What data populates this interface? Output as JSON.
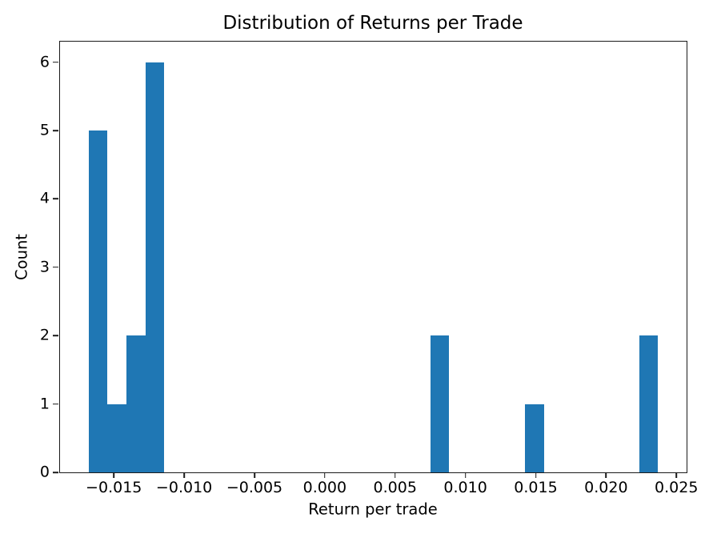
{
  "chart_data": {
    "type": "bar",
    "subtype": "histogram",
    "title": "Distribution of Returns per Trade",
    "xlabel": "Return per trade",
    "ylabel": "Count",
    "bar_color": "#1f77b4",
    "background_color": "#ffffff",
    "spine_color": "#1a1a1a",
    "grid": false,
    "legend": null,
    "bins": 30,
    "bin_start": -0.0168,
    "bin_width": 0.00135,
    "counts": [
      5,
      1,
      2,
      6,
      0,
      0,
      0,
      0,
      0,
      0,
      0,
      0,
      0,
      0,
      0,
      0,
      0,
      0,
      2,
      0,
      0,
      0,
      0,
      1,
      0,
      0,
      0,
      0,
      0,
      2
    ],
    "xlim": [
      -0.018825,
      0.025725
    ],
    "ylim": [
      0,
      6.3
    ],
    "xticks": [
      -0.015,
      -0.01,
      -0.005,
      0.0,
      0.005,
      0.01,
      0.015,
      0.02,
      0.025
    ],
    "xtick_labels": [
      "−0.015",
      "−0.010",
      "−0.005",
      "0.000",
      "0.005",
      "0.010",
      "0.015",
      "0.020",
      "0.025"
    ],
    "yticks": [
      0,
      1,
      2,
      3,
      4,
      5,
      6
    ],
    "ytick_labels": [
      "0",
      "1",
      "2",
      "3",
      "4",
      "5",
      "6"
    ]
  }
}
